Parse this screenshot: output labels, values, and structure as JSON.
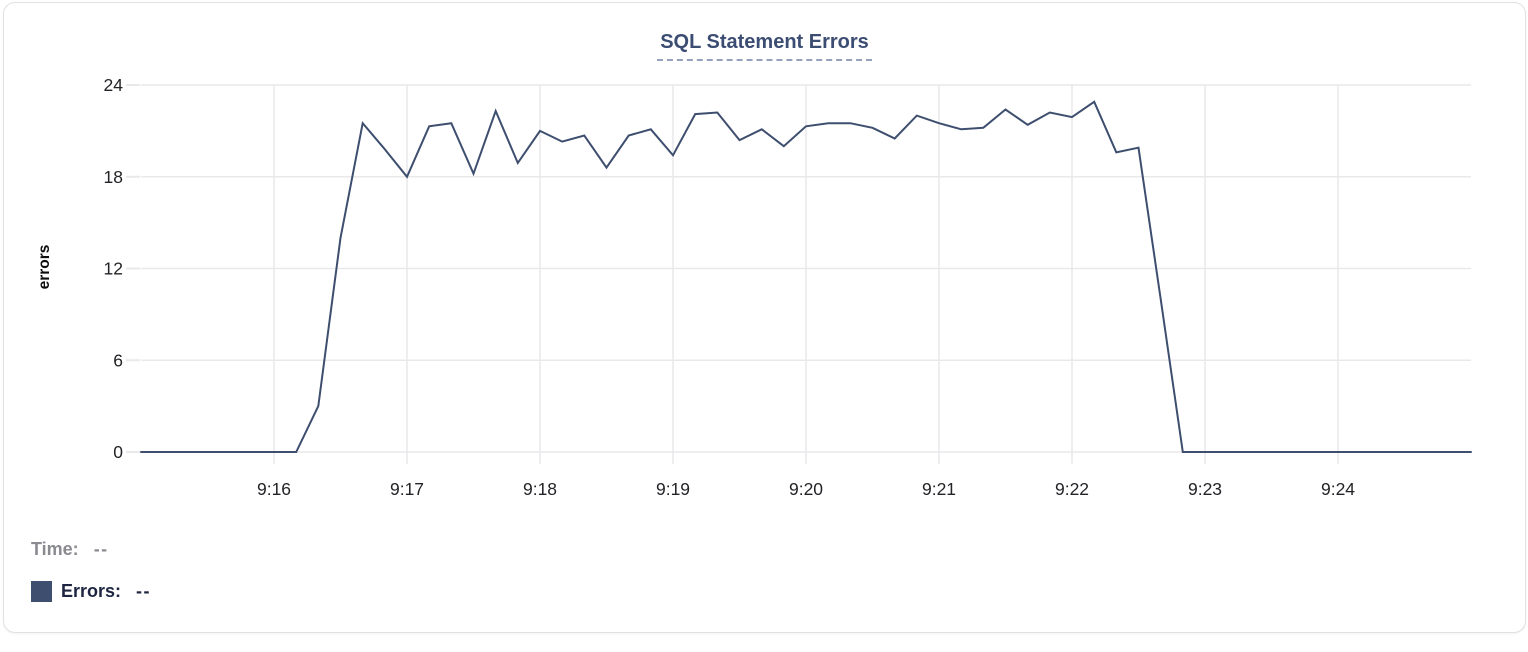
{
  "chart": {
    "title": "SQL Statement Errors"
  },
  "legend": {
    "time_label": "Time:",
    "time_value": "--",
    "errors_label": "Errors:",
    "errors_value": "--"
  },
  "colors": {
    "line": "#3e4e6e",
    "swatch": "#3e4e6e",
    "title": "#3c4d73",
    "title_underline": "#95a1bd",
    "time_row": "#8a8a91",
    "errors_row": "#1d2540",
    "grid": "#e9e9eb",
    "card_border": "#e1e1e5"
  },
  "chart_data": {
    "type": "line",
    "title": "SQL Statement Errors",
    "xlabel": "",
    "ylabel": "errors",
    "ylim": [
      0,
      24
    ],
    "y_ticks": [
      0,
      6,
      12,
      18,
      24
    ],
    "x_ticks": [
      "9:16",
      "9:17",
      "9:18",
      "9:19",
      "9:20",
      "9:21",
      "9:22",
      "9:23",
      "9:24"
    ],
    "x_range": [
      "9:15:00",
      "9:25:00"
    ],
    "grid": true,
    "legend_position": "bottom-left",
    "series": [
      {
        "name": "Errors",
        "color": "#3e4e6e",
        "times": [
          "9:15:00",
          "9:15:10",
          "9:15:20",
          "9:15:30",
          "9:15:40",
          "9:15:50",
          "9:16:00",
          "9:16:10",
          "9:16:20",
          "9:16:30",
          "9:16:40",
          "9:16:50",
          "9:17:00",
          "9:17:10",
          "9:17:20",
          "9:17:30",
          "9:17:40",
          "9:17:50",
          "9:18:00",
          "9:18:10",
          "9:18:20",
          "9:18:30",
          "9:18:40",
          "9:18:50",
          "9:19:00",
          "9:19:10",
          "9:19:20",
          "9:19:30",
          "9:19:40",
          "9:19:50",
          "9:20:00",
          "9:20:10",
          "9:20:20",
          "9:20:30",
          "9:20:40",
          "9:20:50",
          "9:21:00",
          "9:21:10",
          "9:21:20",
          "9:21:30",
          "9:21:40",
          "9:21:50",
          "9:22:00",
          "9:22:10",
          "9:22:20",
          "9:22:30",
          "9:22:40",
          "9:22:50",
          "9:23:00",
          "9:23:10",
          "9:23:20",
          "9:23:30",
          "9:23:40",
          "9:23:50",
          "9:24:00",
          "9:24:10",
          "9:24:20",
          "9:24:30",
          "9:24:40",
          "9:24:50",
          "9:25:00"
        ],
        "values": [
          0,
          0,
          0,
          0,
          0,
          0,
          0,
          0,
          3,
          14,
          21.5,
          19.8,
          18,
          21.3,
          21.5,
          18.2,
          22.3,
          18.9,
          21,
          20.3,
          20.7,
          18.6,
          20.7,
          21.1,
          19.4,
          22.1,
          22.2,
          20.4,
          21.1,
          20,
          21.3,
          21.5,
          21.5,
          21.2,
          20.5,
          22,
          21.5,
          21.1,
          21.2,
          22.4,
          21.4,
          22.2,
          21.9,
          22.9,
          19.6,
          19.9,
          10,
          0,
          0,
          0,
          0,
          0,
          0,
          0,
          0,
          0,
          0,
          0,
          0,
          0,
          0
        ]
      }
    ]
  }
}
